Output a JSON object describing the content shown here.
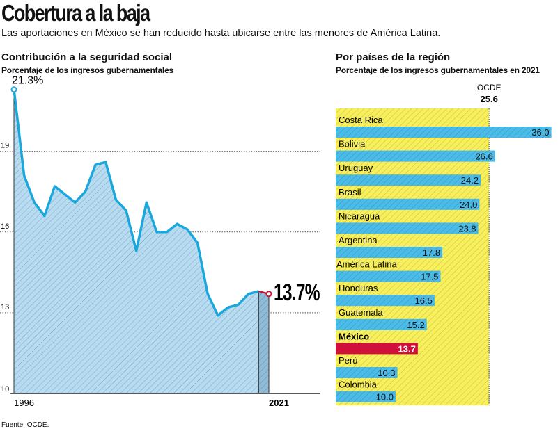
{
  "header": {
    "title": "Cobertura a la baja",
    "subtitle": "Las aportaciones en México se han reducido hasta ubicarse entre las menores de América Latina."
  },
  "source": "Fuente: OCDE.",
  "chart_data": [
    {
      "type": "area",
      "title": "Contribución a la seguridad social",
      "subtitle": "Porcentaje de los ingresos gubernamentales",
      "x": [
        1996,
        1997,
        1998,
        1999,
        2000,
        2001,
        2002,
        2003,
        2004,
        2005,
        2006,
        2007,
        2008,
        2009,
        2010,
        2011,
        2012,
        2013,
        2014,
        2015,
        2016,
        2017,
        2018,
        2019,
        2020,
        2021
      ],
      "values": [
        21.3,
        18.1,
        17.1,
        16.6,
        17.7,
        17.4,
        17.1,
        17.5,
        18.5,
        18.6,
        17.2,
        16.8,
        15.3,
        17.1,
        16.0,
        16.0,
        16.3,
        16.1,
        15.6,
        13.7,
        12.9,
        13.2,
        13.3,
        13.7,
        13.8,
        13.7
      ],
      "xtick_labels": [
        "1996",
        "2021"
      ],
      "yticks": [
        10,
        13,
        16,
        19
      ],
      "ylim": [
        10,
        21.5
      ],
      "grid": "horizontal dotted",
      "annotations": {
        "start": "21.3%",
        "end": "13.7%"
      },
      "colors": {
        "line": "#1aa7dc",
        "fill": "#b7dcf2",
        "last": "#d0103a"
      }
    },
    {
      "type": "bar",
      "title": "Por países de la región",
      "subtitle": "Porcentaje de los ingresos gubernamentales en 2021",
      "reference": {
        "label": "OCDE",
        "value": 25.6,
        "value_label": "25.6",
        "color": "#f7ef5c"
      },
      "categories": [
        "Costa Rica",
        "Bolivia",
        "Uruguay",
        "Brasil",
        "Nicaragua",
        "Argentina",
        "América Latina",
        "Honduras",
        "Guatemala",
        "México",
        "Perú",
        "Colombia"
      ],
      "values": [
        36.0,
        26.6,
        24.2,
        24.0,
        23.8,
        17.8,
        17.5,
        16.5,
        15.2,
        13.7,
        10.3,
        10.0
      ],
      "value_labels": [
        "36.0",
        "26.6",
        "24.2",
        "24.0",
        "23.8",
        "17.8",
        "17.5",
        "16.5",
        "15.2",
        "13.7",
        "10.3",
        "10.0"
      ],
      "highlight": "México",
      "colors": {
        "bar": "#4bbbe8",
        "highlight": "#d0103a"
      }
    }
  ]
}
